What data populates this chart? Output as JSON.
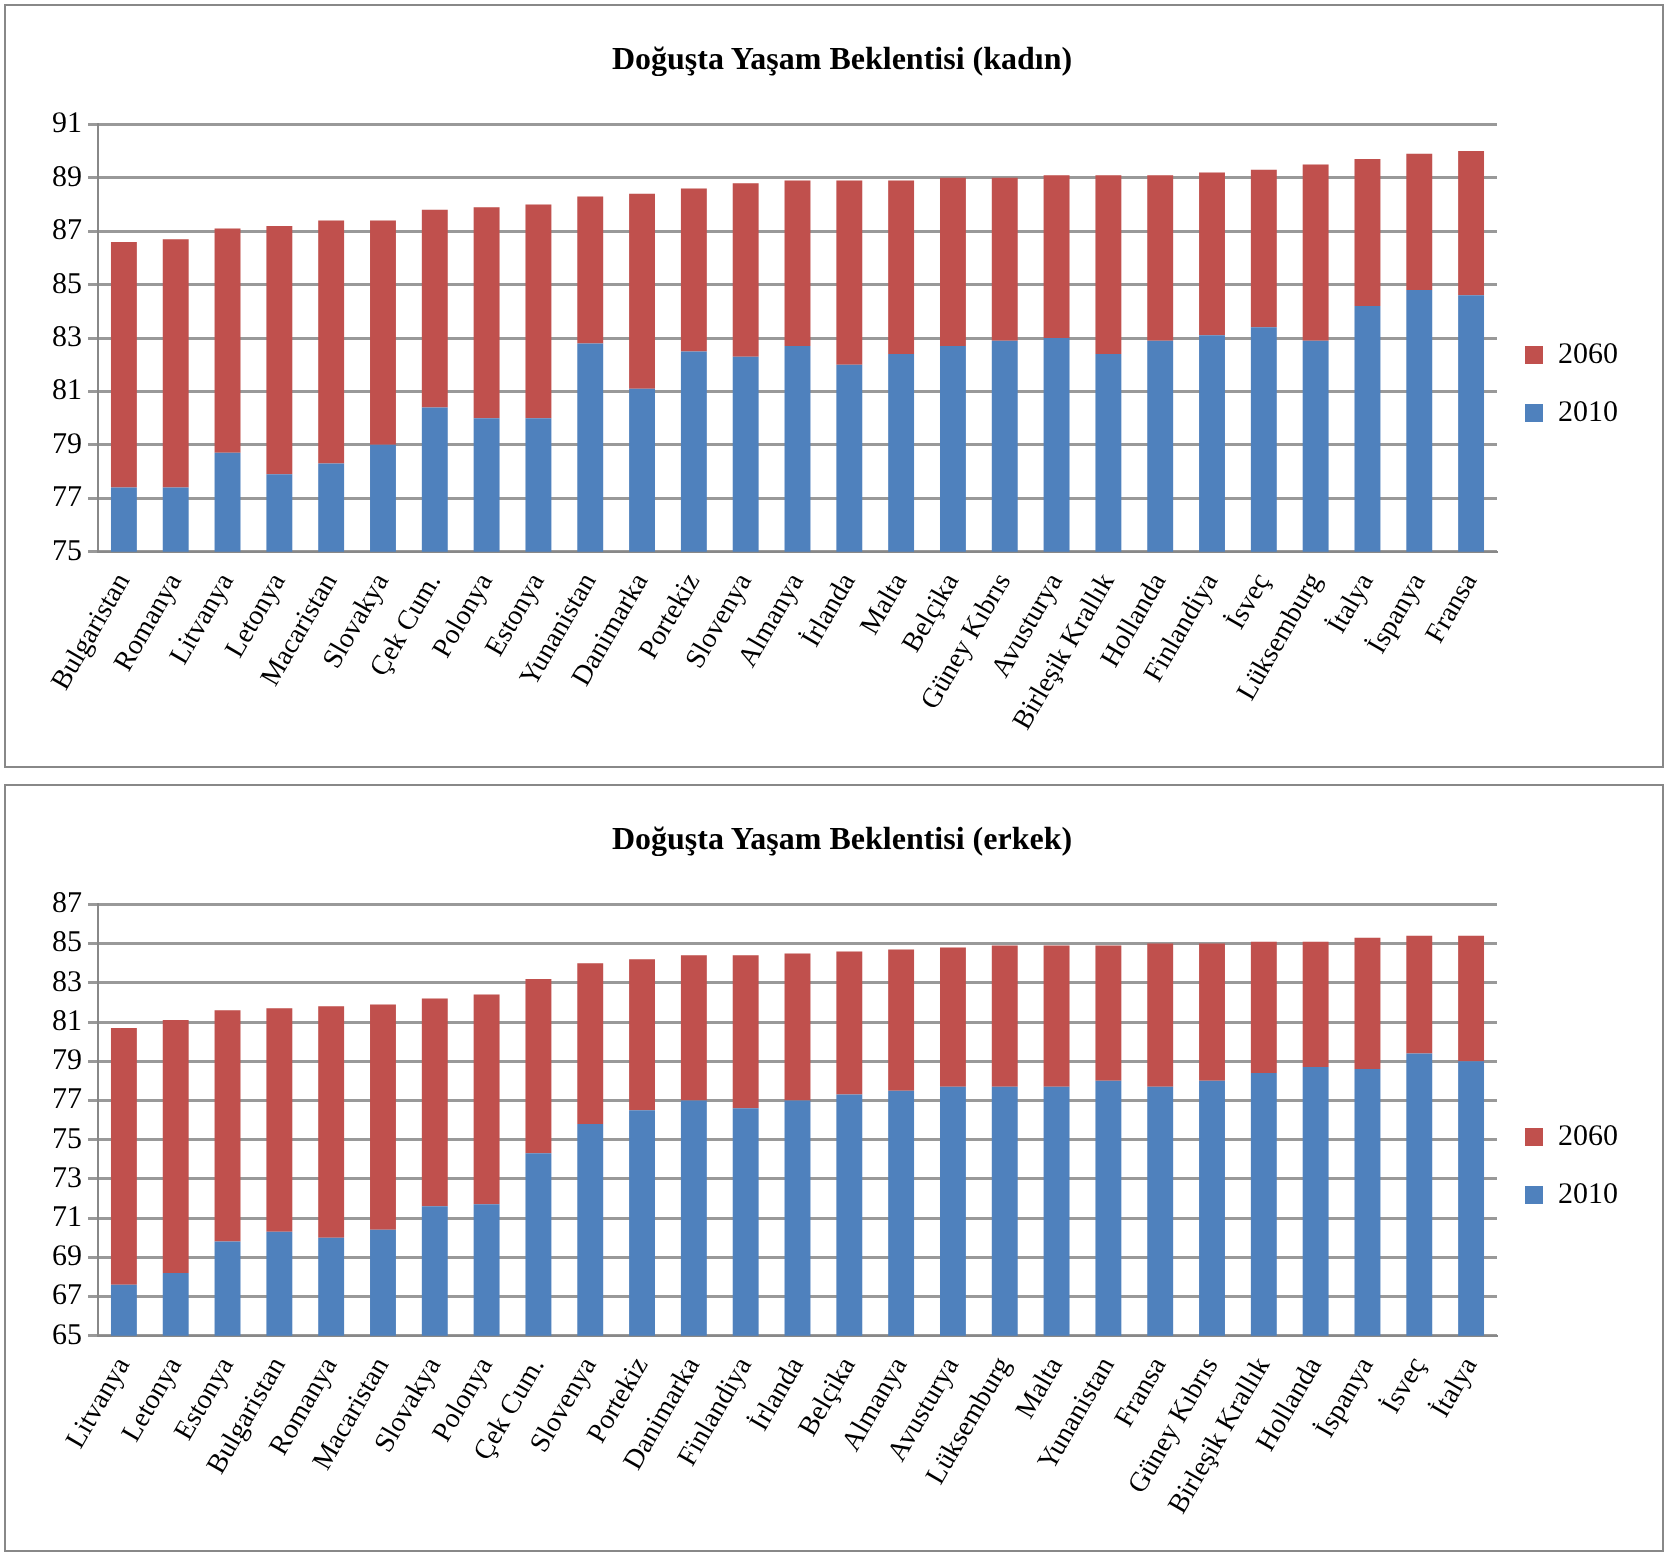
{
  "chart_data": [
    {
      "type": "bar",
      "title": "Doğuşta Yaşam Beklentisi (kadın)",
      "stacked": true,
      "grid": "y",
      "legend": "right",
      "categories": [
        "Bulgaristan",
        "Romanya",
        "Litvanya",
        "Letonya",
        "Macaristan",
        "Slovakya",
        "Çek Cum.",
        "Polonya",
        "Estonya",
        "Yunanistan",
        "Danimarka",
        "Portekiz",
        "Slovenya",
        "Almanya",
        "İrlanda",
        "Malta",
        "Belçika",
        "Güney Kıbrıs",
        "Avusturya",
        "Birleşik Krallık",
        "Hollanda",
        "Finlandiya",
        "İsveç",
        "Lüksemburg",
        "İtalya",
        "İspanya",
        "Fransa"
      ],
      "series": [
        {
          "name": "2010",
          "color": "#4f81bd",
          "values": [
            77.4,
            77.4,
            78.7,
            77.9,
            78.3,
            79.0,
            80.4,
            80.0,
            80.0,
            82.8,
            81.1,
            82.5,
            82.3,
            82.7,
            82.0,
            82.4,
            82.7,
            82.9,
            83.0,
            82.4,
            82.9,
            83.1,
            83.4,
            82.9,
            84.2,
            84.8,
            84.6
          ]
        },
        {
          "name": "2060",
          "color": "#c0504d",
          "base": [
            77.4,
            77.4,
            78.7,
            77.9,
            78.3,
            79.0,
            80.4,
            80.0,
            80.0,
            82.8,
            81.1,
            82.5,
            82.3,
            82.7,
            82.0,
            82.4,
            82.7,
            82.9,
            83.0,
            82.4,
            82.9,
            83.1,
            83.4,
            82.9,
            84.2,
            84.8,
            84.6
          ],
          "values": [
            9.2,
            9.3,
            8.4,
            9.3,
            9.1,
            8.4,
            7.4,
            7.9,
            8.0,
            5.5,
            7.3,
            6.1,
            6.5,
            6.2,
            6.9,
            6.5,
            6.3,
            6.1,
            6.1,
            6.7,
            6.2,
            6.1,
            5.9,
            6.6,
            5.5,
            5.1,
            5.4
          ]
        }
      ],
      "ylim": [
        75,
        91
      ],
      "yticks": [
        75,
        77,
        79,
        81,
        83,
        85,
        87,
        89,
        91
      ]
    },
    {
      "type": "bar",
      "title": "Doğuşta Yaşam Beklentisi (erkek)",
      "stacked": true,
      "grid": "y",
      "legend": "right",
      "categories": [
        "Litvanya",
        "Letonya",
        "Estonya",
        "Bulgaristan",
        "Romanya",
        "Macaristan",
        "Slovakya",
        "Polonya",
        "Çek Cum.",
        "Slovenya",
        "Portekiz",
        "Danimarka",
        "Finlandiya",
        "İrlanda",
        "Belçika",
        "Almanya",
        "Avusturya",
        "Lüksemburg",
        "Malta",
        "Yunanistan",
        "Fransa",
        "Güney Kıbrıs",
        "Birleşik Krallık",
        "Hollanda",
        "İspanya",
        "İsveç",
        "İtalya"
      ],
      "series": [
        {
          "name": "2010",
          "color": "#4f81bd",
          "values": [
            67.6,
            68.2,
            69.8,
            70.3,
            70.0,
            70.4,
            71.6,
            71.7,
            74.3,
            75.8,
            76.5,
            77.0,
            76.6,
            77.0,
            77.3,
            77.5,
            77.7,
            77.7,
            77.7,
            78.0,
            77.7,
            78.0,
            78.4,
            78.7,
            78.6,
            79.4,
            79.0
          ]
        },
        {
          "name": "2060",
          "color": "#c0504d",
          "base": [
            67.6,
            68.2,
            69.8,
            70.3,
            70.0,
            70.4,
            71.6,
            71.7,
            74.3,
            75.8,
            76.5,
            77.0,
            76.6,
            77.0,
            77.3,
            77.5,
            77.7,
            77.7,
            77.7,
            78.0,
            77.7,
            78.0,
            78.4,
            78.7,
            78.6,
            79.4,
            79.0
          ],
          "values": [
            13.1,
            12.9,
            11.8,
            11.4,
            11.8,
            11.5,
            10.6,
            10.7,
            8.9,
            8.2,
            7.7,
            7.4,
            7.8,
            7.5,
            7.3,
            7.2,
            7.1,
            7.2,
            7.2,
            6.9,
            7.3,
            7.0,
            6.7,
            6.4,
            6.7,
            6.0,
            6.4
          ]
        }
      ],
      "ylim": [
        65,
        87
      ],
      "yticks": [
        65,
        67,
        69,
        71,
        73,
        75,
        77,
        79,
        81,
        83,
        85,
        87
      ]
    }
  ]
}
